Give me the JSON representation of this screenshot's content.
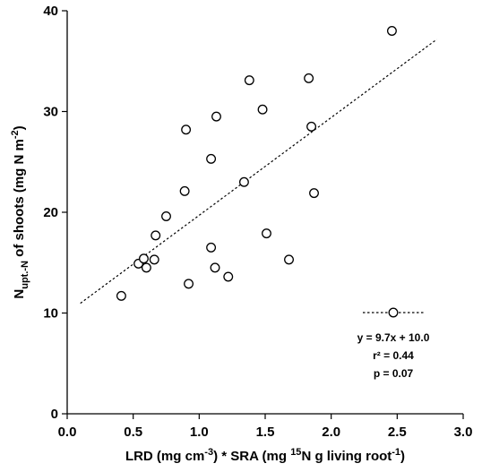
{
  "chart_data": {
    "type": "scatter",
    "xlabel": "LRD (mg cm-3) * SRA (mg 15N g living root-1)",
    "ylabel": "Nupt.-N of shoots (mg N m-2)",
    "xlabel_parts": {
      "a": "LRD (mg cm",
      "b": "-3",
      "c": ") * SRA (mg ",
      "d": "15",
      "e": "N g living root",
      "f": "-1",
      "g": ")"
    },
    "ylabel_parts": {
      "a": "N",
      "b": "upt.-N",
      "c": " of shoots (mg N m",
      "d": "-2",
      "e": ")"
    },
    "xlim": [
      0.0,
      3.0
    ],
    "ylim": [
      0,
      40
    ],
    "xticks": [
      "0.0",
      "0.5",
      "1.0",
      "1.5",
      "2.0",
      "2.5",
      "3.0"
    ],
    "yticks": [
      "0",
      "10",
      "20",
      "30",
      "40"
    ],
    "points": [
      {
        "x": 0.41,
        "y": 11.7
      },
      {
        "x": 0.54,
        "y": 14.9
      },
      {
        "x": 0.58,
        "y": 15.4
      },
      {
        "x": 0.6,
        "y": 14.5
      },
      {
        "x": 0.66,
        "y": 15.3
      },
      {
        "x": 0.67,
        "y": 17.7
      },
      {
        "x": 0.75,
        "y": 19.6
      },
      {
        "x": 0.89,
        "y": 22.1
      },
      {
        "x": 0.9,
        "y": 28.2
      },
      {
        "x": 0.92,
        "y": 12.9
      },
      {
        "x": 1.09,
        "y": 25.3
      },
      {
        "x": 1.09,
        "y": 16.5
      },
      {
        "x": 1.12,
        "y": 14.5
      },
      {
        "x": 1.13,
        "y": 29.5
      },
      {
        "x": 1.22,
        "y": 13.6
      },
      {
        "x": 1.34,
        "y": 23.0
      },
      {
        "x": 1.38,
        "y": 33.1
      },
      {
        "x": 1.48,
        "y": 30.2
      },
      {
        "x": 1.51,
        "y": 17.9
      },
      {
        "x": 1.68,
        "y": 15.3
      },
      {
        "x": 1.83,
        "y": 33.3
      },
      {
        "x": 1.85,
        "y": 28.5
      },
      {
        "x": 1.87,
        "y": 21.9
      },
      {
        "x": 2.46,
        "y": 38.0
      }
    ],
    "fit": {
      "slope": 9.7,
      "intercept": 10.0,
      "x_range": [
        0.1,
        2.8
      ]
    },
    "legend": {
      "position": "bottom-right",
      "equation": "y = 9.7x + 10.0",
      "r2": "r² = 0.44",
      "p": "p = 0.07"
    },
    "grid": false
  }
}
